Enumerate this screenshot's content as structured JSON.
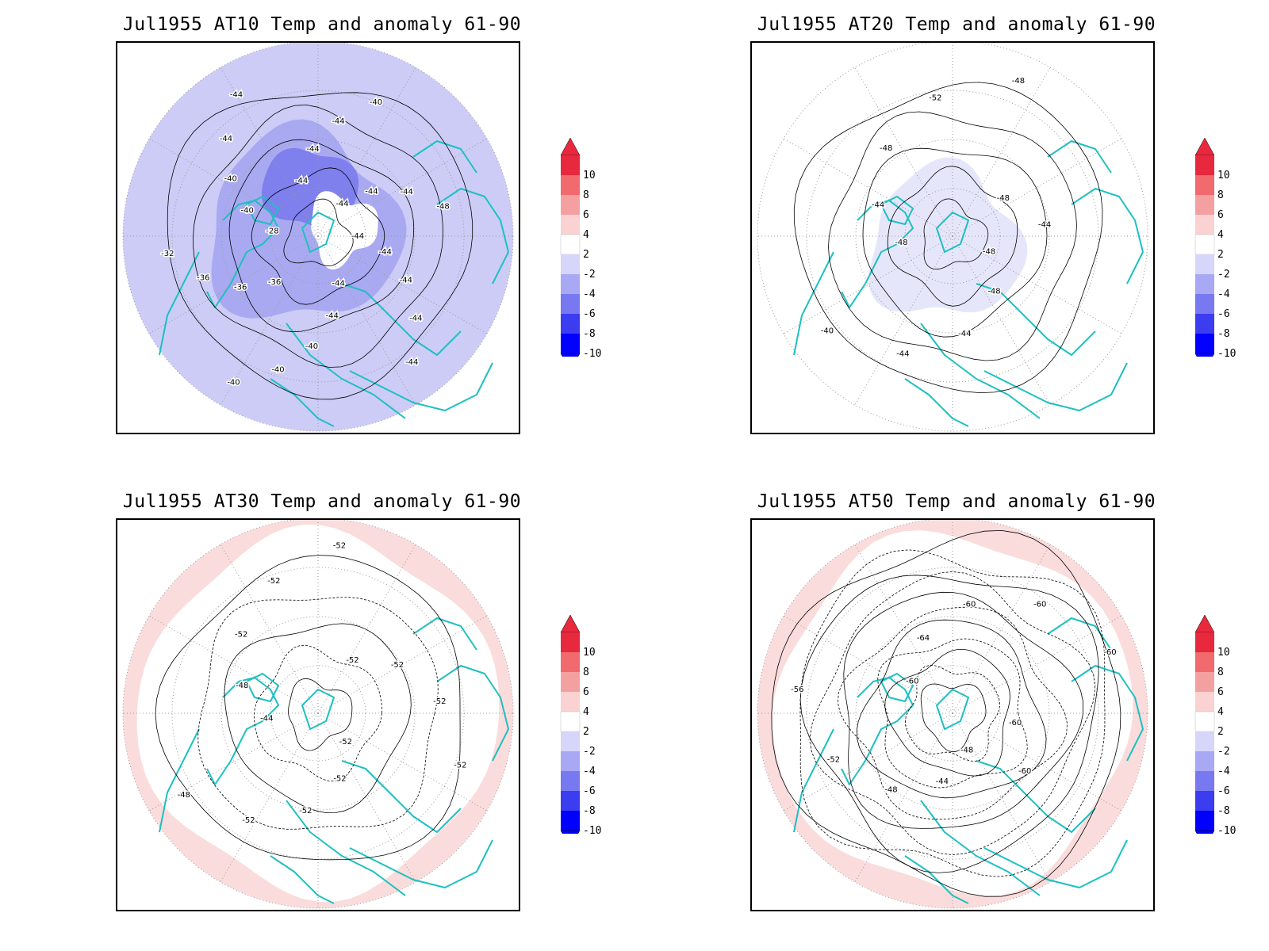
{
  "panels": [
    {
      "title": "Jul1955 AT10 Temp and anomaly 61-90",
      "anomaly_fill": "#ccccf7",
      "contour_labels": [
        "-44",
        "-44",
        "-44",
        "-44",
        "-44",
        "-44",
        "-44",
        "-40",
        "-40",
        "-40",
        "-36",
        "-36",
        "-36",
        "-32",
        "-28",
        "-40",
        "-40",
        "-44",
        "-44",
        "-44",
        "-44",
        "-44",
        "-40",
        "-44",
        "-44",
        "-44",
        "-48"
      ]
    },
    {
      "title": "Jul1955 AT20 Temp and anomaly 61-90",
      "anomaly_fill": "#e6e6fb",
      "contour_labels": [
        "-48",
        "-48",
        "-44",
        "-44",
        "-40",
        "-48",
        "-44",
        "-48",
        "-52",
        "-48",
        "-48",
        "-44"
      ]
    },
    {
      "title": "Jul1955 AT30 Temp and anomaly 61-90",
      "anomaly_fill": "#fbdcdc",
      "contour_labels": [
        "-52",
        "-52",
        "-52",
        "-52",
        "-48",
        "-44",
        "-48",
        "-52",
        "-52",
        "-52",
        "-52",
        "-52",
        "-52",
        "-52"
      ]
    },
    {
      "title": "Jul1955 AT50 Temp and anomaly 61-90",
      "anomaly_fill": "#fbdcdc",
      "contour_labels": [
        "-48",
        "-44",
        "-48",
        "-52",
        "-56",
        "-60",
        "-64",
        "-60",
        "-60",
        "-60",
        "-60",
        "-60"
      ]
    }
  ],
  "colorbar": {
    "labels": [
      "10",
      "8",
      "6",
      "4",
      "2",
      "-2",
      "-4",
      "-6",
      "-8",
      "-10"
    ],
    "colors": [
      "#e8283c",
      "#f06a6e",
      "#f5a0a0",
      "#fbd2d2",
      "#ffffff",
      "#d6d6fa",
      "#a8a8f5",
      "#7878f0",
      "#3c3cf0",
      "#0000ff"
    ]
  },
  "map_colors": {
    "coastline": "#1fc0c0",
    "contour": "#000000",
    "grid": "#999999"
  }
}
